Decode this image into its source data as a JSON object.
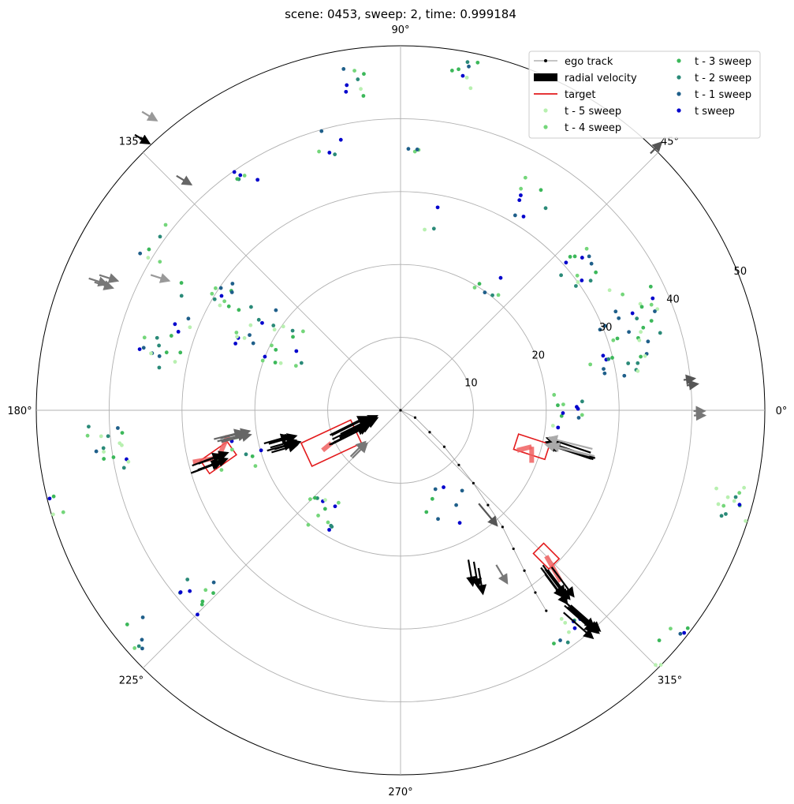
{
  "chart_data": {
    "type": "scatter",
    "projection": "polar",
    "title": "scene: 0453, sweep: 2, time: 0.999184",
    "theta_ticks": [
      "0°",
      "45°",
      "90°",
      "135°",
      "180°",
      "225°",
      "270°",
      "315°"
    ],
    "r_ticks": [
      "10",
      "20",
      "30",
      "40",
      "50"
    ],
    "r_max": 50,
    "grid": true,
    "legend_position": "top-right",
    "legend": [
      {
        "label": "ego track",
        "kind": "line-marker",
        "color": "#888888"
      },
      {
        "label": "radial velocity",
        "kind": "arrow",
        "color": "#000000"
      },
      {
        "label": "target",
        "kind": "line",
        "color": "#e31a1c"
      },
      {
        "label": "t - 5 sweep",
        "kind": "point",
        "color": "#b8f0b0"
      },
      {
        "label": "t - 4 sweep",
        "kind": "point",
        "color": "#74d67a"
      },
      {
        "label": "t - 3 sweep",
        "kind": "point",
        "color": "#3cb85a"
      },
      {
        "label": "t - 2 sweep",
        "kind": "point",
        "color": "#2a8a78"
      },
      {
        "label": "t - 1 sweep",
        "kind": "point",
        "color": "#1f5f8a"
      },
      {
        "label": "t sweep",
        "kind": "point",
        "color": "#0000cc"
      }
    ],
    "ego_track": [
      [
        0,
        0
      ],
      [
        2,
        -1
      ],
      [
        4,
        -3
      ],
      [
        6,
        -5
      ],
      [
        8,
        -7.5
      ],
      [
        10,
        -10
      ],
      [
        12,
        -13
      ],
      [
        14,
        -16
      ],
      [
        15.5,
        -19
      ],
      [
        17,
        -22
      ],
      [
        18.5,
        -25
      ],
      [
        20,
        -27.5
      ]
    ],
    "point_clusters": [
      {
        "x": 30,
        "y": 8,
        "spread": 4,
        "n": 22
      },
      {
        "x": 32,
        "y": 13,
        "spread": 4,
        "n": 18
      },
      {
        "x": 25,
        "y": 20,
        "spread": 3,
        "n": 14
      },
      {
        "x": 18,
        "y": 29,
        "spread": 3,
        "n": 8
      },
      {
        "x": 8,
        "y": 47,
        "spread": 3,
        "n": 8
      },
      {
        "x": -7,
        "y": 45,
        "spread": 2,
        "n": 8
      },
      {
        "x": -10,
        "y": 37,
        "spread": 2,
        "n": 5
      },
      {
        "x": 1.5,
        "y": 35,
        "spread": 1.2,
        "n": 4
      },
      {
        "x": -33,
        "y": 23,
        "spread": 3,
        "n": 6
      },
      {
        "x": -27,
        "y": 15,
        "spread": 4,
        "n": 16
      },
      {
        "x": -20,
        "y": 12,
        "spread": 3,
        "n": 14
      },
      {
        "x": -16,
        "y": 9,
        "spread": 3,
        "n": 14
      },
      {
        "x": -33,
        "y": 8,
        "spread": 3,
        "n": 14
      },
      {
        "x": -40,
        "y": -5,
        "spread": 3,
        "n": 16
      },
      {
        "x": -22,
        "y": -6,
        "spread": 3,
        "n": 10
      },
      {
        "x": -11,
        "y": -14,
        "spread": 2.5,
        "n": 14
      },
      {
        "x": 6,
        "y": -13,
        "spread": 2.5,
        "n": 8
      },
      {
        "x": -28,
        "y": -26,
        "spread": 3,
        "n": 10
      },
      {
        "x": -38,
        "y": -30,
        "spread": 3,
        "n": 8
      },
      {
        "x": 23,
        "y": 0,
        "spread": 2.5,
        "n": 12
      },
      {
        "x": 23,
        "y": -30,
        "spread": 2,
        "n": 10
      },
      {
        "x": 46,
        "y": -13,
        "spread": 3,
        "n": 16
      },
      {
        "x": 38,
        "y": -32,
        "spread": 3,
        "n": 10
      },
      {
        "x": -47,
        "y": -13,
        "spread": 1.5,
        "n": 4
      },
      {
        "x": -21,
        "y": 32,
        "spread": 2,
        "n": 6
      },
      {
        "x": 12,
        "y": 17,
        "spread": 2,
        "n": 6
      },
      {
        "x": 4,
        "y": 26,
        "spread": 2,
        "n": 3
      }
    ],
    "radial_velocity_arrows": [
      {
        "x": -18,
        "y": -5,
        "dx": 3.5,
        "dy": 1,
        "color": "#000000",
        "n": 7
      },
      {
        "x": -28,
        "y": -8,
        "dx": 4,
        "dy": 1.5,
        "color": "#000000",
        "n": 5
      },
      {
        "x": -25,
        "y": -4,
        "dx": 4,
        "dy": 1,
        "color": "#666666",
        "n": 4
      },
      {
        "x": -9,
        "y": -4,
        "dx": 5,
        "dy": 2.5,
        "color": "#000000",
        "n": 9
      },
      {
        "x": -7,
        "y": -7,
        "dx": 2,
        "dy": 2,
        "color": "#777777",
        "n": 2
      },
      {
        "x": 26,
        "y": -6,
        "dx": -6,
        "dy": 2,
        "color": "#000000",
        "n": 6
      },
      {
        "x": 26,
        "y": -6,
        "dx": -6,
        "dy": 1.5,
        "color": "#aaaaaa",
        "n": 3
      },
      {
        "x": 20,
        "y": -22,
        "dx": 3,
        "dy": -4,
        "color": "#000000",
        "n": 6
      },
      {
        "x": 10,
        "y": -13,
        "dx": 2.5,
        "dy": -3,
        "color": "#555555",
        "n": 1
      },
      {
        "x": 10,
        "y": -21,
        "dx": 0.6,
        "dy": -3.5,
        "color": "#000000",
        "n": 3
      },
      {
        "x": 13,
        "y": -21,
        "dx": 1.5,
        "dy": -2.5,
        "color": "#777777",
        "n": 1
      },
      {
        "x": 23,
        "y": -27,
        "dx": 4,
        "dy": -3.5,
        "color": "#000000",
        "n": 7
      },
      {
        "x": 35,
        "y": 35,
        "dx": 1.5,
        "dy": 1.5,
        "color": "#555555",
        "n": 1
      },
      {
        "x": 39,
        "y": 3.5,
        "dx": 1.5,
        "dy": 0.2,
        "color": "#555555",
        "n": 2
      },
      {
        "x": 40,
        "y": 0,
        "dx": 1.5,
        "dy": 0,
        "color": "#777777",
        "n": 2
      },
      {
        "x": -36,
        "y": 38,
        "dx": 2,
        "dy": -1.2,
        "color": "#000000",
        "n": 1
      },
      {
        "x": -36,
        "y": 41,
        "dx": 2,
        "dy": -1.2,
        "color": "#999999",
        "n": 1
      },
      {
        "x": -30,
        "y": 32,
        "dx": 2,
        "dy": -1.2,
        "color": "#666666",
        "n": 1
      },
      {
        "x": -42,
        "y": 18,
        "dx": 2.5,
        "dy": -0.8,
        "color": "#777777",
        "n": 3
      },
      {
        "x": -34,
        "y": 18,
        "dx": 2.5,
        "dy": -0.8,
        "color": "#999999",
        "n": 1
      }
    ],
    "targets": [
      {
        "x": -25,
        "y": -6.5,
        "w": 4.5,
        "h": 2.2,
        "angle": 35
      },
      {
        "x": -9.5,
        "y": -4.5,
        "w": 7.5,
        "h": 3.5,
        "angle": 25
      },
      {
        "x": 18,
        "y": -5,
        "w": 4.5,
        "h": 2.2,
        "angle": -18
      },
      {
        "x": 20,
        "y": -20,
        "w": 3,
        "h": 2,
        "angle": -45
      }
    ],
    "target_headings": [
      {
        "x": -25,
        "y": -6.5,
        "dx": -3.5,
        "dy": -0.6
      },
      {
        "x": -25,
        "y": -6.5,
        "dx": 1.3,
        "dy": 3
      },
      {
        "x": 18,
        "y": -5,
        "dx": 0,
        "dy": -2.2
      },
      {
        "x": 18,
        "y": -5,
        "dx": -2,
        "dy": -0.5
      },
      {
        "x": 20,
        "y": -20,
        "dx": 2,
        "dy": -3.5
      },
      {
        "x": -9.5,
        "y": -4.5,
        "dx": -1.2,
        "dy": -1
      }
    ]
  }
}
